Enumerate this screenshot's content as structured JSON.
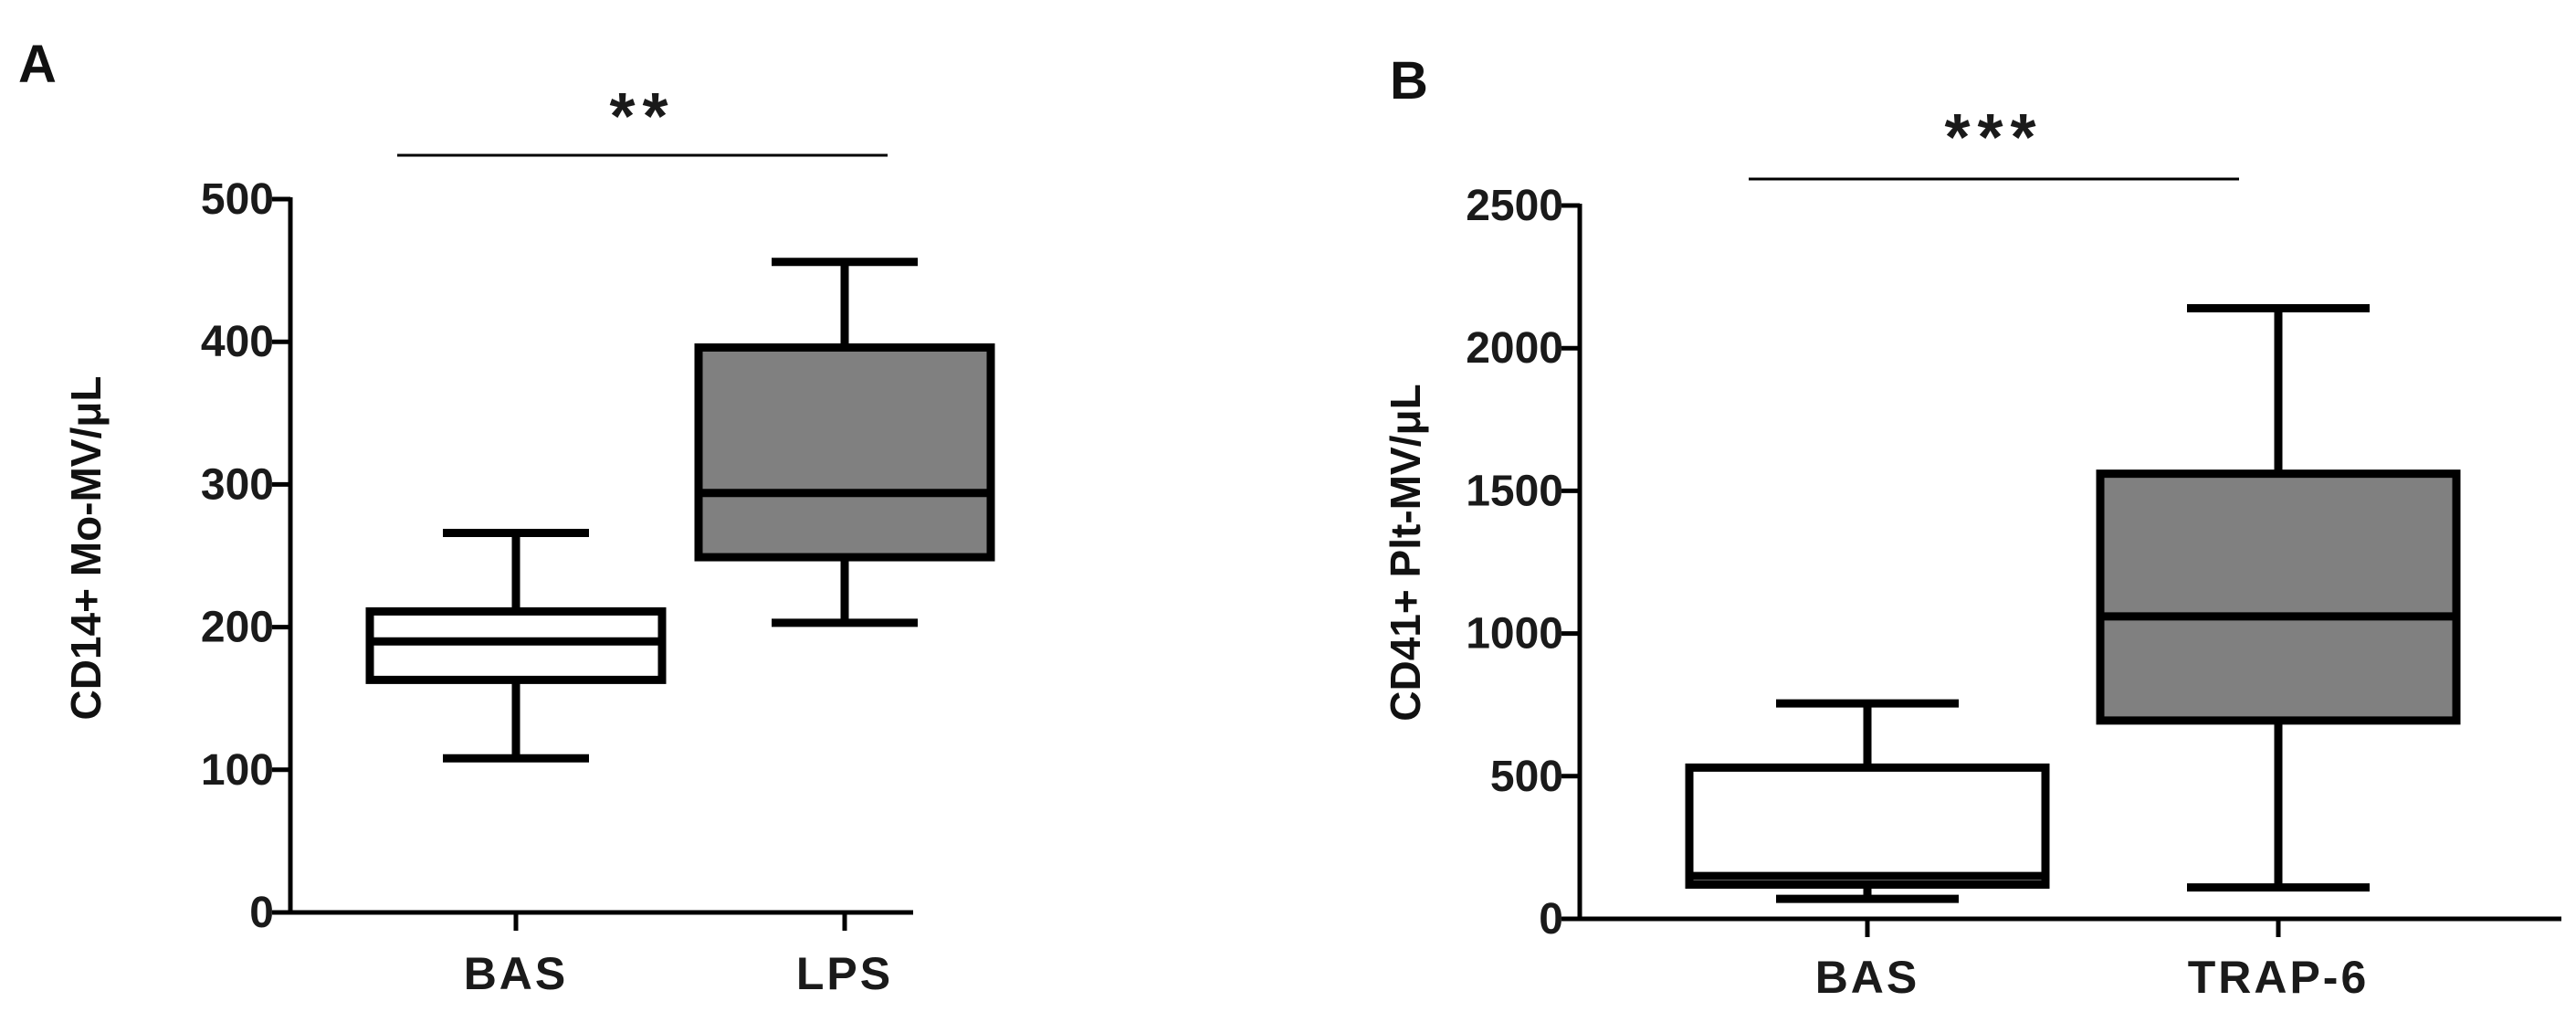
{
  "chart_data": [
    {
      "type": "box",
      "panel": "A",
      "ylabel": "CD14+ Mo-MV/μL",
      "ylim": [
        0,
        500
      ],
      "yticks": [
        0,
        100,
        200,
        300,
        400,
        500
      ],
      "significance": "**",
      "categories": [
        "BAS",
        "LPS"
      ],
      "boxes": [
        {
          "category": "BAS",
          "min": 108,
          "q1": 163,
          "median": 190,
          "q3": 211,
          "max": 266,
          "fill": "#ffffff"
        },
        {
          "category": "LPS",
          "min": 203,
          "q1": 249,
          "median": 294,
          "q3": 396,
          "max": 456,
          "fill": "#808080"
        }
      ]
    },
    {
      "type": "box",
      "panel": "B",
      "ylabel": "CD41+ Plt-MV/μL",
      "ylim": [
        0,
        2500
      ],
      "yticks": [
        0,
        500,
        1000,
        1500,
        2000,
        2500
      ],
      "significance": "***",
      "categories": [
        "BAS",
        "TRAP-6"
      ],
      "boxes": [
        {
          "category": "BAS",
          "min": 70,
          "q1": 120,
          "median": 150,
          "q3": 530,
          "max": 755,
          "fill": "#ffffff"
        },
        {
          "category": "TRAP-6",
          "min": 110,
          "q1": 695,
          "median": 1060,
          "q3": 1560,
          "max": 2140,
          "fill": "#808080"
        }
      ]
    }
  ],
  "colors": {
    "stroke": "#000000",
    "gray_fill": "#808080",
    "white_fill": "#ffffff"
  }
}
